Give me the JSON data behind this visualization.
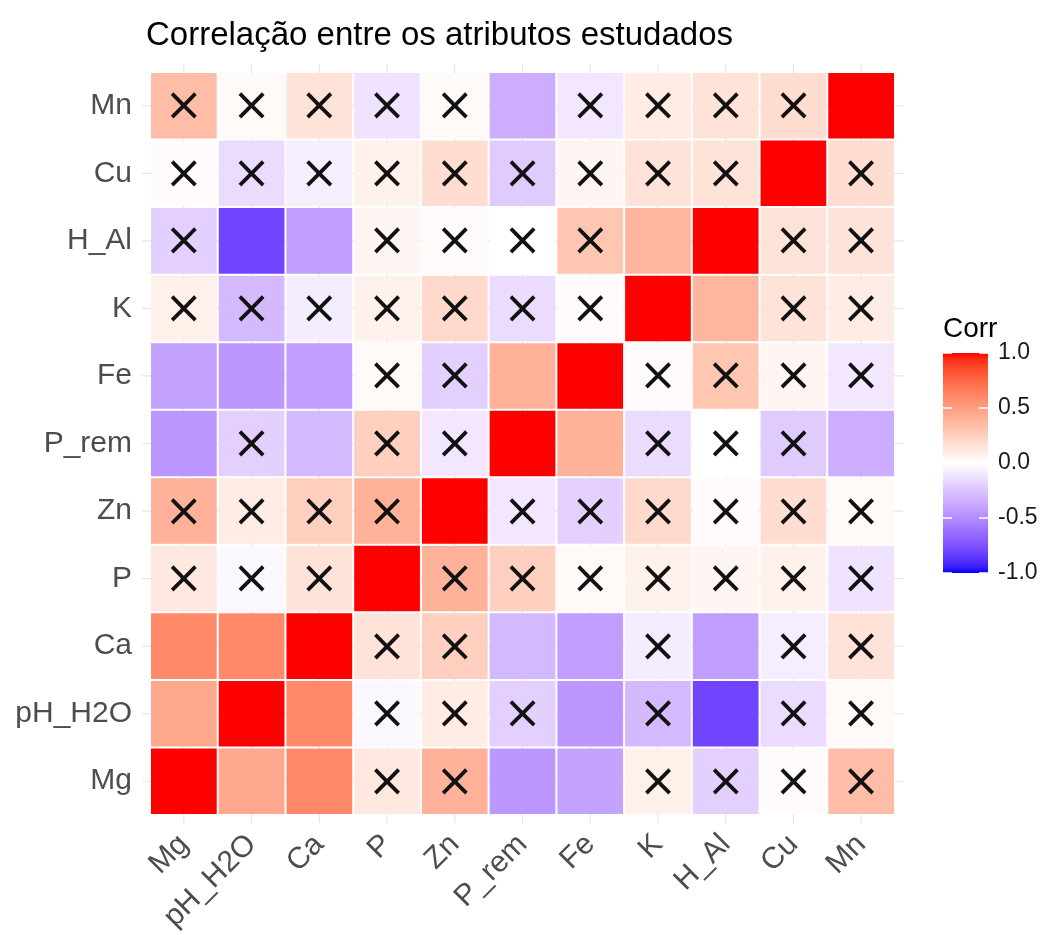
{
  "chart_data": {
    "type": "heatmap",
    "title": "Correlação entre os atributos estudados",
    "categories": [
      "Mg",
      "pH_H2O",
      "Ca",
      "P",
      "Zn",
      "P_rem",
      "Fe",
      "K",
      "H_Al",
      "Cu",
      "Mn"
    ],
    "y_categories": [
      "Mn",
      "Cu",
      "H_Al",
      "K",
      "Fe",
      "P_rem",
      "Zn",
      "P",
      "Ca",
      "pH_H2O",
      "Mg"
    ],
    "cells": [
      [
        0.35,
        0.03,
        0.15,
        -0.12,
        0.03,
        -0.35,
        -0.1,
        0.1,
        0.15,
        0.18,
        1
      ],
      [
        0.02,
        -0.15,
        -0.07,
        0.07,
        0.18,
        -0.22,
        0.05,
        0.15,
        0.15,
        1,
        0.18
      ],
      [
        -0.2,
        -0.8,
        -0.42,
        0.05,
        0.02,
        0,
        0.3,
        0.38,
        1,
        0.15,
        0.15
      ],
      [
        0.08,
        -0.3,
        -0.08,
        0.07,
        0.2,
        -0.15,
        0.02,
        1,
        0.38,
        0.15,
        0.1
      ],
      [
        -0.4,
        -0.45,
        -0.42,
        0.03,
        -0.2,
        0.4,
        1,
        0.02,
        0.3,
        0.05,
        -0.1
      ],
      [
        -0.45,
        -0.2,
        -0.3,
        0.25,
        -0.1,
        1,
        0.4,
        -0.15,
        0,
        -0.22,
        -0.35
      ],
      [
        0.4,
        0.1,
        0.25,
        0.4,
        1,
        -0.1,
        -0.2,
        0.2,
        0.02,
        0.18,
        0.03
      ],
      [
        0.12,
        -0.03,
        0.15,
        1,
        0.4,
        0.25,
        0.03,
        0.07,
        0.05,
        0.07,
        -0.12
      ],
      [
        0.6,
        0.6,
        1,
        0.15,
        0.25,
        -0.3,
        -0.42,
        -0.08,
        -0.42,
        -0.07,
        0.15
      ],
      [
        0.45,
        1,
        0.6,
        -0.03,
        0.1,
        -0.2,
        -0.45,
        -0.3,
        -0.8,
        -0.15,
        0.03
      ],
      [
        1,
        0.45,
        0.6,
        0.12,
        0.4,
        -0.45,
        -0.4,
        0.08,
        -0.2,
        0.02,
        0.35
      ]
    ],
    "cell_labels": [
      [
        "×",
        "×",
        "×",
        "×",
        "×",
        null,
        "×",
        "×",
        "×",
        "×",
        null
      ],
      [
        "×",
        "×",
        "×",
        "×",
        "×",
        "×",
        "×",
        "×",
        "×",
        null,
        "×"
      ],
      [
        "×",
        null,
        null,
        "×",
        "×",
        "×",
        "×",
        null,
        null,
        "×",
        "×"
      ],
      [
        "×",
        "×",
        "×",
        "×",
        "×",
        "×",
        "×",
        null,
        null,
        "×",
        "×"
      ],
      [
        null,
        null,
        null,
        "×",
        "×",
        null,
        null,
        "×",
        "×",
        "×",
        "×"
      ],
      [
        null,
        "×",
        null,
        "×",
        "×",
        null,
        null,
        "×",
        "×",
        "×",
        null
      ],
      [
        "×",
        "×",
        "×",
        "×",
        null,
        "×",
        "×",
        "×",
        "×",
        "×",
        "×"
      ],
      [
        "×",
        "×",
        "×",
        null,
        "×",
        "×",
        "×",
        "×",
        "×",
        "×",
        "×"
      ],
      [
        null,
        null,
        null,
        "×",
        "×",
        null,
        null,
        "×",
        null,
        "×",
        "×"
      ],
      [
        null,
        null,
        null,
        "×",
        "×",
        "×",
        null,
        "×",
        null,
        "×",
        "×"
      ],
      [
        null,
        null,
        null,
        "×",
        "×",
        null,
        null,
        "×",
        "×",
        "×",
        "×"
      ]
    ],
    "clim": [
      -1,
      1
    ],
    "cticks": [
      {
        "value": 1,
        "label": "1.0"
      },
      {
        "value": 0.5,
        "label": "0.5"
      },
      {
        "value": 0,
        "label": "0.0"
      },
      {
        "value": -0.5,
        "label": "-0.5"
      },
      {
        "value": -1,
        "label": "-1.0"
      }
    ],
    "clabel": "Corr",
    "grid": true
  }
}
